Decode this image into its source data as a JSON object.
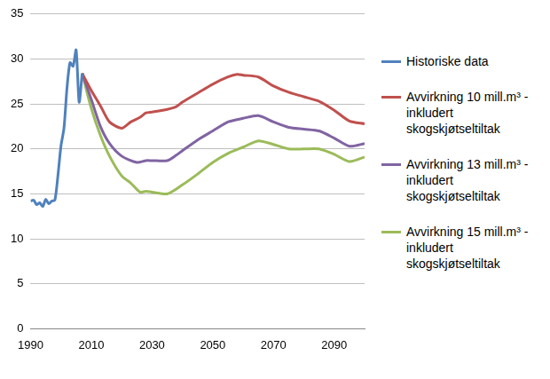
{
  "chart_data": {
    "type": "line",
    "xlim": [
      1990,
      2100
    ],
    "xticks": [
      1990,
      2010,
      2030,
      2050,
      2070,
      2090
    ],
    "ylim": [
      0,
      35
    ],
    "yticks": [
      0,
      5,
      10,
      15,
      20,
      25,
      30,
      35
    ],
    "grid": true,
    "legend": "right",
    "series": [
      {
        "name": "Historiske data",
        "color": "#4f81bd",
        "x": [
          1990,
          1991,
          1992,
          1993,
          1994,
          1995,
          1996,
          1997,
          1998,
          1999,
          2000,
          2001,
          2002,
          2003,
          2004,
          2005,
          2006,
          2007
        ],
        "values": [
          14.2,
          14.3,
          13.8,
          14.0,
          13.6,
          14.4,
          13.9,
          14.2,
          14.3,
          17.0,
          20.3,
          22.3,
          26.8,
          29.6,
          29.2,
          31.0,
          25.2,
          28.4
        ]
      },
      {
        "name": "Avvirkning 10 mill.m³ - inkludert skogskjøtseltiltak",
        "color": "#c0504d",
        "x": [
          2007,
          2010,
          2013,
          2016,
          2020,
          2023,
          2026,
          2028,
          2030,
          2035,
          2038,
          2040,
          2045,
          2050,
          2055,
          2058,
          2060,
          2065,
          2070,
          2075,
          2080,
          2085,
          2090,
          2095,
          2100
        ],
        "values": [
          28.4,
          26.5,
          24.8,
          23.0,
          22.3,
          23.0,
          23.5,
          24.0,
          24.1,
          24.4,
          24.7,
          25.2,
          26.2,
          27.2,
          28.0,
          28.3,
          28.2,
          28.0,
          27.0,
          26.3,
          25.8,
          25.3,
          24.3,
          23.1,
          22.8
        ]
      },
      {
        "name": "Avvirkning 13 mill.m³ - inkludert skogskjøtseltiltak",
        "color": "#8064a2",
        "x": [
          2007,
          2010,
          2013,
          2016,
          2020,
          2025,
          2028,
          2030,
          2035,
          2038,
          2040,
          2045,
          2050,
          2055,
          2060,
          2065,
          2070,
          2075,
          2080,
          2085,
          2090,
          2095,
          2100
        ],
        "values": [
          28.4,
          25.5,
          22.5,
          20.6,
          19.2,
          18.5,
          18.7,
          18.7,
          18.7,
          19.3,
          19.8,
          21.0,
          22.0,
          23.0,
          23.4,
          23.7,
          23.0,
          22.4,
          22.2,
          22.0,
          21.2,
          20.3,
          20.6
        ]
      },
      {
        "name": "Avvirkning 15 mill.m³ - inkludert skogskjøtseltiltak",
        "color": "#9bbb59",
        "x": [
          2007,
          2010,
          2013,
          2016,
          2020,
          2023,
          2026,
          2028,
          2030,
          2035,
          2040,
          2045,
          2050,
          2055,
          2060,
          2065,
          2070,
          2075,
          2080,
          2085,
          2090,
          2095,
          2100
        ],
        "values": [
          28.4,
          24.5,
          21.5,
          19.2,
          17.0,
          16.2,
          15.2,
          15.3,
          15.2,
          15.0,
          16.0,
          17.2,
          18.5,
          19.5,
          20.2,
          20.9,
          20.5,
          20.0,
          20.0,
          20.0,
          19.4,
          18.6,
          19.1
        ]
      }
    ]
  }
}
